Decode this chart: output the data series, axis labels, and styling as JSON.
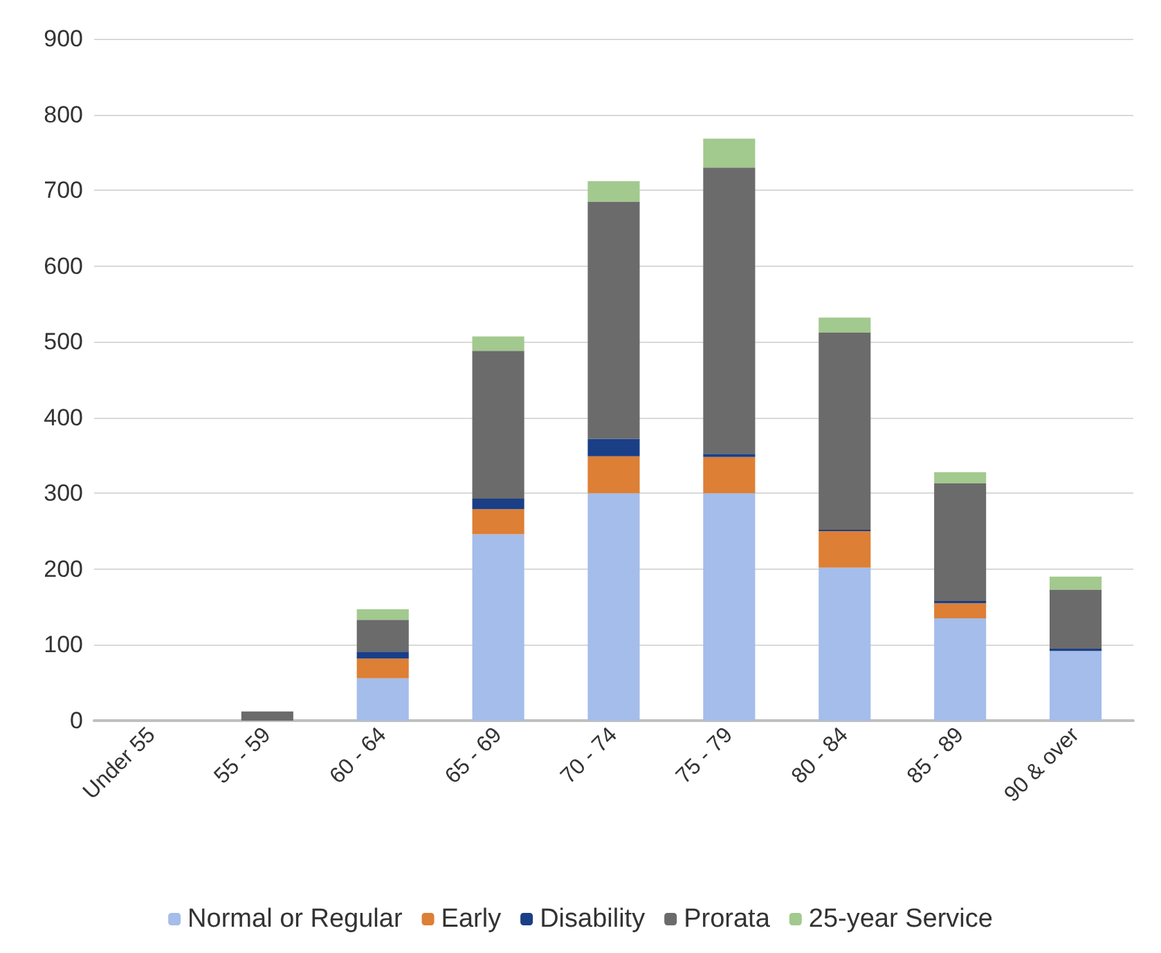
{
  "chart_data": {
    "type": "bar",
    "stacked": true,
    "categories": [
      "Under 55",
      "55 - 59",
      "60 - 64",
      "65 - 69",
      "70 - 74",
      "75 - 79",
      "80 - 84",
      "85 - 89",
      "90 & over"
    ],
    "series": [
      {
        "name": "Normal or Regular",
        "color": "#a4bdea",
        "values": [
          0,
          0,
          56,
          246,
          300,
          300,
          202,
          135,
          92
        ]
      },
      {
        "name": "Early",
        "color": "#dd7f35",
        "values": [
          0,
          0,
          26,
          33,
          49,
          48,
          48,
          20,
          0
        ]
      },
      {
        "name": "Disability",
        "color": "#1a3f87",
        "values": [
          0,
          0,
          9,
          14,
          23,
          4,
          2,
          3,
          3
        ]
      },
      {
        "name": "Prorata",
        "color": "#6b6b6b",
        "values": [
          0,
          12,
          42,
          195,
          313,
          378,
          260,
          155,
          78
        ]
      },
      {
        "name": "25-year Service",
        "color": "#a2c98e",
        "values": [
          0,
          0,
          14,
          19,
          27,
          38,
          20,
          15,
          17
        ]
      }
    ],
    "ylim": [
      0,
      900
    ],
    "yticks": [
      0,
      100,
      200,
      300,
      400,
      500,
      600,
      700,
      800,
      900
    ],
    "grid": "y",
    "legend": "bottom"
  }
}
